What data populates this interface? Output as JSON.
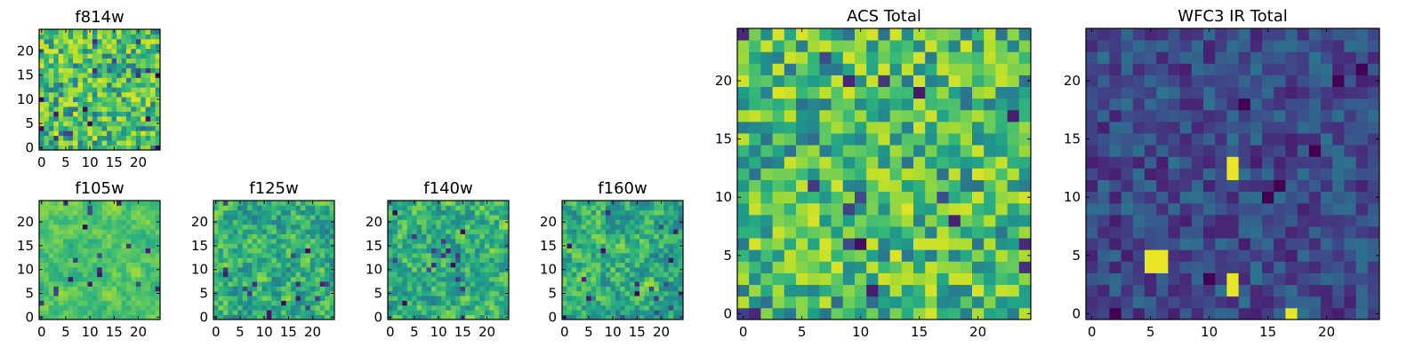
{
  "chart_data": [
    {
      "type": "heatmap",
      "title": "f814w",
      "grid_size": 25,
      "xlim": [
        0,
        24
      ],
      "ylim": [
        0,
        24
      ],
      "xticks": [
        0,
        5,
        10,
        15,
        20
      ],
      "yticks": [
        0,
        5,
        10,
        15,
        20
      ],
      "xtick_labels": [
        "0",
        "5",
        "10",
        "15",
        "20"
      ],
      "ytick_labels": [
        "0",
        "5",
        "10",
        "15",
        "20"
      ],
      "colormap": "viridis",
      "value_range": [
        0,
        1
      ],
      "seed": 11,
      "smoothing": 0,
      "style": "noise_bright",
      "note_values": "25x25 pixel image; per-pixel values not legible, mostly green-yellow noise"
    },
    {
      "type": "heatmap",
      "title": "f105w",
      "grid_size": 25,
      "xlim": [
        0,
        24
      ],
      "ylim": [
        0,
        24
      ],
      "xticks": [
        0,
        5,
        10,
        15,
        20
      ],
      "yticks": [
        0,
        5,
        10,
        15,
        20
      ],
      "xtick_labels": [
        "0",
        "5",
        "10",
        "15",
        "20"
      ],
      "ytick_labels": [
        "0",
        "5",
        "10",
        "15",
        "20"
      ],
      "colormap": "viridis",
      "value_range": [
        0,
        1
      ],
      "seed": 23,
      "smoothing": 2,
      "style": "smooth_bright"
    },
    {
      "type": "heatmap",
      "title": "f125w",
      "grid_size": 25,
      "xlim": [
        0,
        24
      ],
      "ylim": [
        0,
        24
      ],
      "xticks": [
        0,
        5,
        10,
        15,
        20
      ],
      "yticks": [
        0,
        5,
        10,
        15,
        20
      ],
      "xtick_labels": [
        "0",
        "5",
        "10",
        "15",
        "20"
      ],
      "ytick_labels": [
        "0",
        "5",
        "10",
        "15",
        "20"
      ],
      "colormap": "viridis",
      "value_range": [
        0,
        1
      ],
      "seed": 37,
      "smoothing": 1,
      "style": "smooth_mid"
    },
    {
      "type": "heatmap",
      "title": "f140w",
      "grid_size": 25,
      "xlim": [
        0,
        24
      ],
      "ylim": [
        0,
        24
      ],
      "xticks": [
        0,
        5,
        10,
        15,
        20
      ],
      "yticks": [
        0,
        5,
        10,
        15,
        20
      ],
      "xtick_labels": [
        "0",
        "5",
        "10",
        "15",
        "20"
      ],
      "ytick_labels": [
        "0",
        "5",
        "10",
        "15",
        "20"
      ],
      "colormap": "viridis",
      "value_range": [
        0,
        1
      ],
      "seed": 41,
      "smoothing": 1,
      "style": "smooth_mid"
    },
    {
      "type": "heatmap",
      "title": "f160w",
      "grid_size": 25,
      "xlim": [
        0,
        24
      ],
      "ylim": [
        0,
        24
      ],
      "xticks": [
        0,
        5,
        10,
        15,
        20
      ],
      "yticks": [
        0,
        5,
        10,
        15,
        20
      ],
      "xtick_labels": [
        "0",
        "5",
        "10",
        "15",
        "20"
      ],
      "ytick_labels": [
        "0",
        "5",
        "10",
        "15",
        "20"
      ],
      "colormap": "viridis",
      "value_range": [
        0,
        1
      ],
      "seed": 53,
      "smoothing": 1,
      "style": "smooth_mid"
    },
    {
      "type": "heatmap",
      "title": "ACS Total",
      "grid_size": 25,
      "xlim": [
        0,
        24
      ],
      "ylim": [
        0,
        24
      ],
      "xticks": [
        0,
        5,
        10,
        15,
        20
      ],
      "yticks": [
        0,
        5,
        10,
        15,
        20
      ],
      "xtick_labels": [
        "0",
        "5",
        "10",
        "15",
        "20"
      ],
      "ytick_labels": [
        "0",
        "5",
        "10",
        "15",
        "20"
      ],
      "colormap": "viridis",
      "value_range": [
        0,
        1
      ],
      "seed": 67,
      "smoothing": 0,
      "style": "noise_bright"
    },
    {
      "type": "heatmap",
      "title": "WFC3 IR Total",
      "grid_size": 25,
      "xlim": [
        0,
        24
      ],
      "ylim": [
        0,
        24
      ],
      "xticks": [
        0,
        5,
        10,
        15,
        20
      ],
      "yticks": [
        0,
        5,
        10,
        15,
        20
      ],
      "xtick_labels": [
        "0",
        "5",
        "10",
        "15",
        "20"
      ],
      "ytick_labels": [
        "0",
        "5",
        "10",
        "15",
        "20"
      ],
      "colormap": "viridis",
      "value_range": [
        0,
        1
      ],
      "seed": 79,
      "smoothing": 0,
      "style": "noise_dark",
      "bright_pixels": [
        [
          5,
          5
        ],
        [
          5,
          4
        ],
        [
          6,
          5
        ],
        [
          6,
          4
        ],
        [
          12,
          12
        ],
        [
          12,
          13
        ],
        [
          12,
          3
        ],
        [
          12,
          2
        ],
        [
          17,
          0
        ]
      ],
      "dark_pixels": [
        [
          13,
          18
        ],
        [
          21,
          20
        ],
        [
          23,
          21
        ],
        [
          16,
          11
        ],
        [
          19,
          14
        ],
        [
          15,
          10
        ],
        [
          2,
          0
        ],
        [
          10,
          3
        ]
      ]
    }
  ]
}
